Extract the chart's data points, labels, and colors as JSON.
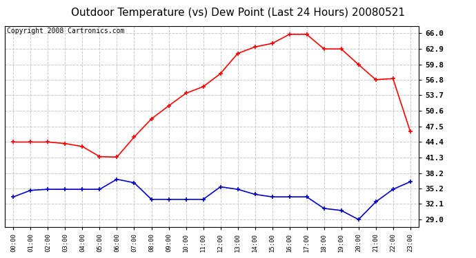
{
  "title": "Outdoor Temperature (vs) Dew Point (Last 24 Hours) 20080521",
  "copyright": "Copyright 2008 Cartronics.com",
  "x_labels": [
    "00:00",
    "01:00",
    "02:00",
    "03:00",
    "04:00",
    "05:00",
    "06:00",
    "07:00",
    "08:00",
    "09:00",
    "10:00",
    "11:00",
    "12:00",
    "13:00",
    "14:00",
    "15:00",
    "16:00",
    "17:00",
    "18:00",
    "19:00",
    "20:00",
    "21:00",
    "22:00",
    "23:00"
  ],
  "temp_data": [
    44.4,
    44.4,
    44.4,
    44.1,
    43.5,
    41.5,
    41.4,
    45.4,
    49.0,
    51.6,
    54.1,
    55.4,
    58.0,
    62.0,
    63.3,
    64.0,
    65.8,
    65.8,
    62.9,
    62.9,
    59.8,
    56.8,
    57.0,
    46.5
  ],
  "dew_data": [
    33.5,
    34.8,
    35.0,
    35.0,
    35.0,
    35.0,
    37.0,
    36.3,
    33.0,
    33.0,
    33.0,
    33.0,
    35.5,
    35.0,
    34.0,
    33.5,
    33.5,
    33.5,
    31.2,
    30.8,
    29.0,
    32.5,
    35.0,
    36.5
  ],
  "temp_color": "#ff0000",
  "dew_color": "#0000cc",
  "bg_color": "#ffffff",
  "plot_bg": "#ffffff",
  "grid_color": "#c8c8c8",
  "yticks": [
    29.0,
    32.1,
    35.2,
    38.2,
    41.3,
    44.4,
    47.5,
    50.6,
    53.7,
    56.8,
    59.8,
    62.9,
    66.0
  ],
  "ylim": [
    27.5,
    67.5
  ],
  "title_fontsize": 11,
  "copyright_fontsize": 7
}
